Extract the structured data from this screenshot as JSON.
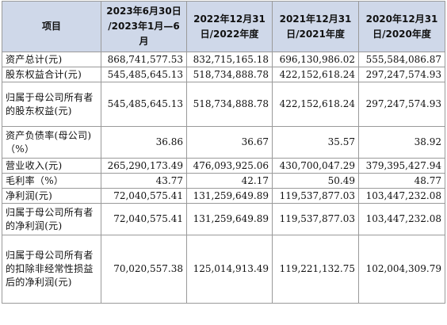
{
  "table": {
    "header": {
      "item": "项目",
      "cols": [
        [
          "2023年6月30日",
          "/2023年1月—6",
          "月"
        ],
        [
          "2022年12月31",
          "日/2022年度"
        ],
        [
          "2021年12月31",
          "日/2021年度"
        ],
        [
          "2020年12月31",
          "日/2020年度"
        ]
      ]
    },
    "rows": [
      {
        "label": "资产总计(元)",
        "values": [
          "868,741,577.53",
          "832,715,165.18",
          "696,130,986.02",
          "555,584,086.87"
        ]
      },
      {
        "label": "股东权益合计(元)",
        "values": [
          "545,485,645.13",
          "518,734,888.78",
          "422,152,618.24",
          "297,247,574.93"
        ]
      },
      {
        "label": "归属于母公司所有者的股东权益(元)",
        "values": [
          "545,485,645.13",
          "518,734,888.78",
          "422,152,618.24",
          "297,247,574.93"
        ]
      },
      {
        "label": "资产负债率(母公司)（%）",
        "values": [
          "36.86",
          "36.67",
          "35.57",
          "38.92"
        ]
      },
      {
        "label": "营业收入(元)",
        "values": [
          "265,290,173.49",
          "476,093,925.06",
          "430,700,047.29",
          "379,395,427.94"
        ]
      },
      {
        "label": "毛利率（%）",
        "values": [
          "43.77",
          "42.17",
          "50.49",
          "48.77"
        ]
      },
      {
        "label": "净利润(元)",
        "values": [
          "72,040,575.41",
          "131,259,649.89",
          "119,537,877.03",
          "103,447,232.08"
        ]
      },
      {
        "label": "归属于母公司所有者的净利润(元)",
        "values": [
          "72,040,575.41",
          "131,259,649.89",
          "119,537,877.03",
          "103,447,232.08"
        ]
      },
      {
        "label": "归属于母公司所有者的扣除非经常性损益后的净利润(元)",
        "values": [
          "70,020,557.38",
          "125,014,913.49",
          "119,221,132.75",
          "102,004,309.79"
        ]
      }
    ]
  }
}
